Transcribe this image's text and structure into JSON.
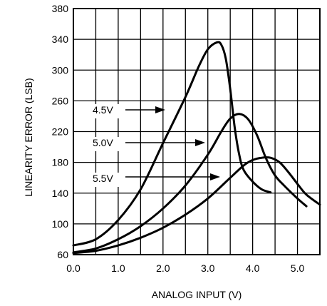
{
  "chart_data": {
    "type": "line",
    "xlabel": "ANALOG INPUT (V)",
    "ylabel": "LINEARITY ERROR (LSB)",
    "xlim": [
      0,
      5.5
    ],
    "ylim": [
      60,
      380
    ],
    "grid": true,
    "x_ticks": [
      "0.0",
      "1.0",
      "2.0",
      "3.0",
      "4.0",
      "5.0"
    ],
    "y_ticks": [
      "60",
      "100",
      "140",
      "180",
      "220",
      "260",
      "300",
      "340",
      "380"
    ],
    "series": [
      {
        "name": "4.5V",
        "x": [
          0.0,
          0.5,
          1.0,
          1.5,
          2.0,
          2.5,
          2.8,
          3.0,
          3.2,
          3.3,
          3.4,
          3.5,
          3.6,
          3.7,
          3.8,
          4.0,
          4.2,
          4.4
        ],
        "y": [
          72,
          80,
          105,
          145,
          205,
          265,
          305,
          327,
          336,
          333,
          315,
          275,
          225,
          190,
          170,
          155,
          145,
          141
        ]
      },
      {
        "name": "5.0V",
        "x": [
          0.0,
          0.5,
          1.0,
          1.5,
          2.0,
          2.5,
          3.0,
          3.3,
          3.5,
          3.7,
          3.9,
          4.1,
          4.3,
          4.5,
          4.7,
          5.0,
          5.2
        ],
        "y": [
          63,
          68,
          80,
          97,
          120,
          150,
          190,
          220,
          237,
          243,
          236,
          215,
          185,
          163,
          150,
          133,
          123
        ]
      },
      {
        "name": "5.5V",
        "x": [
          0.0,
          0.5,
          1.0,
          1.5,
          2.0,
          2.5,
          3.0,
          3.5,
          3.8,
          4.0,
          4.2,
          4.4,
          4.6,
          4.8,
          5.0,
          5.2,
          5.5
        ],
        "y": [
          62,
          65,
          72,
          82,
          95,
          112,
          133,
          160,
          176,
          183,
          186,
          186,
          180,
          167,
          152,
          138,
          125
        ]
      }
    ]
  }
}
